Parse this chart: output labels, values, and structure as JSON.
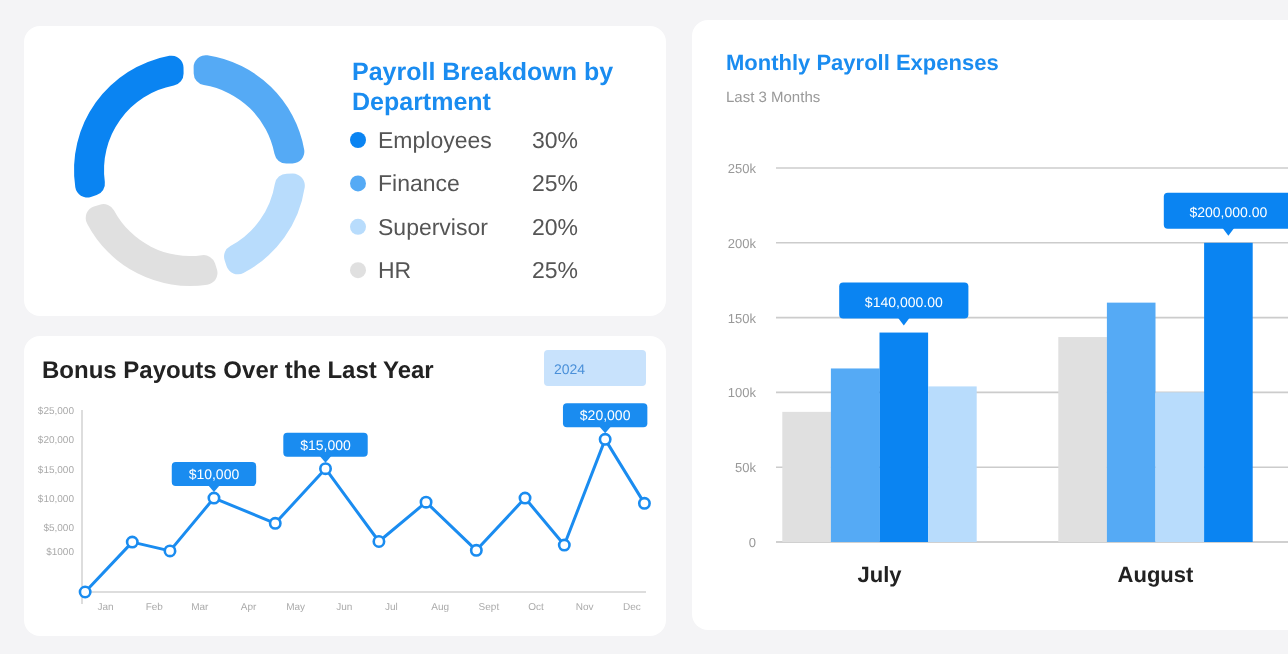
{
  "chart_data": [
    {
      "type": "donut",
      "title": "Payroll Breakdown by Department",
      "categories": [
        "Employees",
        "Finance",
        "Supervisor",
        "HR"
      ],
      "values": [
        30,
        25,
        20,
        25
      ],
      "colors": [
        "#0a84f2",
        "#55aaf5",
        "#b8dcfc",
        "#e0e0e0"
      ],
      "legend": "right",
      "value_labels": [
        "30%",
        "25%",
        "20%",
        "25%"
      ]
    },
    {
      "type": "line",
      "title": "Bonus Payouts Over the Last Year",
      "annotations": [
        "2024"
      ],
      "x": [
        "2023-12-19",
        "2024-01-18",
        "2024-02-11",
        "2024-03-10",
        "2024-04-18",
        "2024-05-20",
        "2024-06-23",
        "2024-07-23",
        "2024-08-24",
        "2024-09-24",
        "2024-10-19",
        "2024-11-14",
        "2024-12-09"
      ],
      "series": [
        {
          "color": "#1a8cf0",
          "values": [
            -6000,
            2500,
            1000,
            10000,
            5700,
            15000,
            2600,
            9300,
            1100,
            10000,
            2000,
            20000,
            9100
          ],
          "value_labels": [
            null,
            null,
            null,
            "$10,000",
            null,
            "$15,000",
            null,
            null,
            null,
            null,
            null,
            "$20,000",
            null
          ]
        }
      ],
      "xlim": [
        "2023-12-17",
        "2024-12-10"
      ],
      "xticks": [
        {
          "value": "2024-01-01",
          "label": "Jan"
        },
        {
          "value": "2024-02-01",
          "label": "Feb"
        },
        {
          "value": "2024-03-01",
          "label": "Mar"
        },
        {
          "value": "2024-04-01",
          "label": "Apr"
        },
        {
          "value": "2024-05-01",
          "label": "May"
        },
        {
          "value": "2024-06-01",
          "label": "Jun"
        },
        {
          "value": "2024-07-01",
          "label": "Jul"
        },
        {
          "value": "2024-08-01",
          "label": "Aug"
        },
        {
          "value": "2024-09-01",
          "label": "Sept"
        },
        {
          "value": "2024-10-01",
          "label": "Oct"
        },
        {
          "value": "2024-11-01",
          "label": "Nov"
        },
        {
          "value": "2024-12-01",
          "label": "Dec"
        }
      ],
      "ylim": [
        -6000,
        25000
      ],
      "yticks": [
        {
          "value": 1000,
          "label": "$1000"
        },
        {
          "value": 5000,
          "label": "$5,000"
        },
        {
          "value": 10000,
          "label": "$10,000"
        },
        {
          "value": 15000,
          "label": "$15,000"
        },
        {
          "value": 20000,
          "label": "$20,000"
        },
        {
          "value": 25000,
          "label": "$25,000"
        }
      ],
      "marker": "circle",
      "grid": false
    },
    {
      "type": "bar",
      "title": "Monthly Payroll Expenses",
      "subtitle": "Last 3 Months",
      "categories": [
        "July",
        "August"
      ],
      "series": [
        {
          "color": "#e0e0e0",
          "values": [
            87000,
            137000
          ]
        },
        {
          "color": "#55aaf5",
          "values": [
            116000,
            160000
          ]
        },
        {
          "colors": [
            "#0a84f2",
            "#b8dcfc"
          ],
          "values": [
            140000,
            100000
          ],
          "value_labels": [
            "$140,000.00",
            null
          ]
        },
        {
          "colors": [
            "#b8dcfc",
            "#0a84f2"
          ],
          "values": [
            104000,
            200000
          ],
          "value_labels": [
            null,
            "$200,000.00"
          ]
        }
      ],
      "ylim": [
        0,
        250000
      ],
      "yticks": [
        {
          "value": 0,
          "label": "0"
        },
        {
          "value": 50000,
          "label": "50k"
        },
        {
          "value": 100000,
          "label": "100k"
        },
        {
          "value": 150000,
          "label": "150k"
        },
        {
          "value": 200000,
          "label": "200k"
        },
        {
          "value": 250000,
          "label": "250k"
        }
      ],
      "grid": "y"
    }
  ]
}
